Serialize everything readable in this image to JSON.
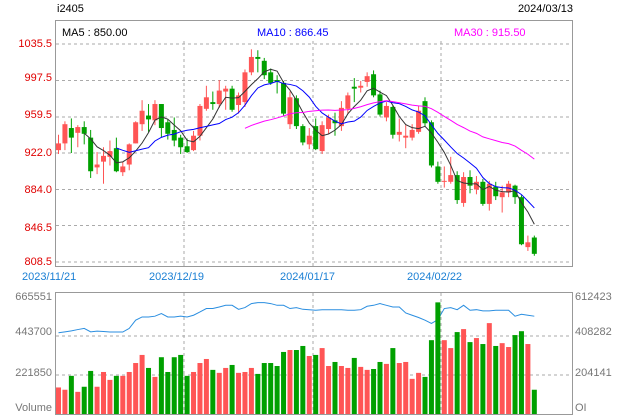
{
  "header": {
    "symbol": "i2405",
    "date": "2024/03/13"
  },
  "ma_legend": {
    "ma5": "MA5 : 850.00",
    "ma10": "MA10 : 866.45",
    "ma30": "MA30 : 915.50"
  },
  "colors": {
    "up": "#ff5555",
    "down": "#00a000",
    "ma5": "#333333",
    "ma10": "#0000ff",
    "ma30": "#ff00ff",
    "oi": "#2a8ee0",
    "date": "#1a7fd4",
    "price_axis": "#e00000"
  },
  "price_axis": [
    "1035.5",
    "997.5",
    "959.5",
    "922.0",
    "884.0",
    "846.5",
    "808.5"
  ],
  "date_axis": [
    "2023/11/21",
    "2023/12/19",
    "2024/01/17",
    "2024/02/22"
  ],
  "volume_axis": {
    "left": [
      "665551",
      "443700",
      "221850"
    ],
    "left_label": "Volume",
    "right": [
      "612423",
      "408282",
      "204141"
    ],
    "right_label": "OI"
  },
  "chart_data": {
    "type": "candlestick",
    "price_range": [
      808.5,
      1035.5
    ],
    "candles": [
      [
        925,
        941,
        921,
        932
      ],
      [
        932,
        955,
        925,
        952
      ],
      [
        948,
        958,
        922,
        938
      ],
      [
        943,
        951,
        928,
        949
      ],
      [
        949,
        955,
        931,
        942
      ],
      [
        938,
        946,
        896,
        903
      ],
      [
        907,
        923,
        900,
        910
      ],
      [
        913,
        928,
        890,
        919
      ],
      [
        918,
        935,
        909,
        924
      ],
      [
        927,
        938,
        902,
        903
      ],
      [
        902,
        913,
        898,
        908
      ],
      [
        910,
        932,
        904,
        931
      ],
      [
        932,
        955,
        932,
        954
      ],
      [
        952,
        977,
        945,
        966
      ],
      [
        961,
        973,
        944,
        957
      ],
      [
        956,
        977,
        951,
        973
      ],
      [
        973,
        973,
        938,
        948
      ],
      [
        954,
        957,
        936,
        942
      ],
      [
        946,
        959,
        929,
        935
      ],
      [
        938,
        941,
        921,
        928
      ],
      [
        929,
        937,
        922,
        923
      ],
      [
        925,
        945,
        924,
        940
      ],
      [
        940,
        973,
        935,
        971
      ],
      [
        968,
        992,
        966,
        980
      ],
      [
        975,
        986,
        967,
        973
      ],
      [
        973,
        998,
        969,
        987
      ],
      [
        986,
        992,
        967,
        989
      ],
      [
        989,
        992,
        965,
        967
      ],
      [
        972,
        985,
        963,
        982
      ],
      [
        975,
        1009,
        970,
        1006
      ],
      [
        1006,
        1030,
        1003,
        1022
      ],
      [
        1022,
        1029,
        1006,
        1020
      ],
      [
        1018,
        1021,
        999,
        1003
      ],
      [
        1006,
        1010,
        993,
        995
      ],
      [
        998,
        1003,
        984,
        996
      ],
      [
        995,
        997,
        960,
        963
      ],
      [
        952,
        986,
        947,
        980
      ],
      [
        979,
        982,
        947,
        950
      ],
      [
        950,
        952,
        930,
        933
      ],
      [
        931,
        948,
        926,
        940
      ],
      [
        950,
        958,
        925,
        926
      ],
      [
        924,
        955,
        921,
        951
      ],
      [
        947,
        962,
        942,
        959
      ],
      [
        956,
        964,
        940,
        953
      ],
      [
        950,
        976,
        945,
        969
      ],
      [
        968,
        985,
        963,
        982
      ],
      [
        991,
        1000,
        975,
        989
      ],
      [
        990,
        997,
        985,
        992
      ],
      [
        996,
        1006,
        991,
        1002
      ],
      [
        1004,
        1008,
        980,
        982
      ],
      [
        983,
        987,
        960,
        962
      ],
      [
        959,
        975,
        955,
        971
      ],
      [
        970,
        972,
        937,
        941
      ],
      [
        941,
        958,
        934,
        944
      ],
      [
        938,
        951,
        927,
        940
      ],
      [
        938,
        952,
        935,
        946
      ],
      [
        944,
        971,
        942,
        966
      ],
      [
        976,
        980,
        950,
        953
      ],
      [
        954,
        956,
        907,
        909
      ],
      [
        908,
        913,
        890,
        892
      ],
      [
        892,
        908,
        886,
        893
      ],
      [
        892,
        918,
        890,
        899
      ],
      [
        899,
        903,
        869,
        873
      ],
      [
        870,
        902,
        866,
        897
      ],
      [
        897,
        904,
        880,
        888
      ],
      [
        884,
        898,
        879,
        892
      ],
      [
        892,
        895,
        867,
        869
      ],
      [
        869,
        893,
        862,
        890
      ],
      [
        887,
        892,
        873,
        877
      ],
      [
        876,
        888,
        860,
        881
      ],
      [
        881,
        893,
        876,
        890
      ],
      [
        888,
        889,
        869,
        876
      ],
      [
        876,
        878,
        826,
        827
      ],
      [
        824,
        836,
        820,
        829
      ],
      [
        834,
        836,
        815,
        817
      ]
    ],
    "volume": [
      151000,
      138000,
      217000,
      126000,
      155000,
      245000,
      155000,
      239000,
      194000,
      217000,
      217000,
      239000,
      290000,
      336000,
      262000,
      211000,
      323000,
      239000,
      323000,
      336000,
      217000,
      239000,
      290000,
      313000,
      251000,
      234000,
      262000,
      279000,
      234000,
      239000,
      262000,
      228000,
      290000,
      290000,
      273000,
      353000,
      364000,
      364000,
      387000,
      330000,
      336000,
      375000,
      273000,
      296000,
      273000,
      262000,
      319000,
      268000,
      251000,
      256000,
      296000,
      285000,
      375000,
      290000,
      296000,
      200000,
      234000,
      211000,
      420000,
      635000,
      420000,
      375000,
      466000,
      483000,
      409000,
      432000,
      398000,
      517000,
      387000,
      403000,
      381000,
      449000,
      471000,
      398000,
      138000
    ],
    "open_interest": [
      425000,
      430000,
      435000,
      442000,
      448000,
      430000,
      434000,
      432000,
      429000,
      429000,
      429000,
      448000,
      491000,
      508000,
      508000,
      512000,
      526000,
      508000,
      508000,
      512000,
      508000,
      517000,
      534000,
      552000,
      552000,
      560000,
      569000,
      569000,
      548000,
      557000,
      578000,
      583000,
      583000,
      578000,
      569000,
      569000,
      552000,
      557000,
      548000,
      546000,
      543000,
      546000,
      546000,
      546000,
      546000,
      543000,
      543000,
      546000,
      564000,
      569000,
      578000,
      569000,
      560000,
      560000,
      529000,
      517000,
      505000,
      491000,
      474000,
      494000,
      552000,
      557000,
      546000,
      569000,
      543000,
      546000,
      540000,
      540000,
      543000,
      543000,
      543000,
      512000,
      522000,
      517000,
      512000
    ],
    "volume_range": [
      0,
      665551
    ],
    "oi_range": [
      0,
      612423
    ],
    "ma_periods": [
      5,
      10,
      30
    ]
  }
}
